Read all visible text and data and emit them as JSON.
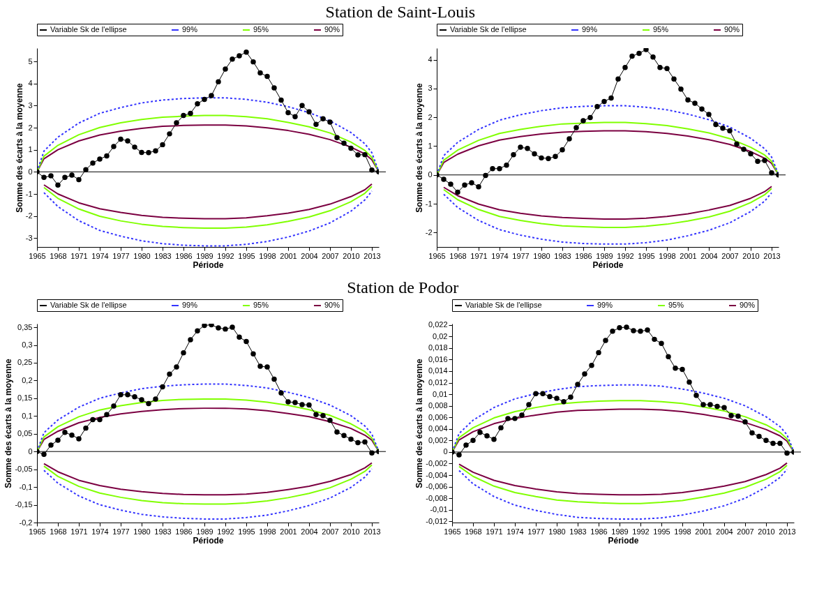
{
  "chart_data": [
    {
      "type": "line",
      "title": "Station de Saint-Louis",
      "xlabel": "Période",
      "ylabel": "Somme des écarts à la moyenne",
      "legend": "top",
      "x": [
        1965,
        1966,
        1967,
        1968,
        1969,
        1970,
        1971,
        1972,
        1973,
        1974,
        1975,
        1976,
        1977,
        1978,
        1979,
        1980,
        1981,
        1982,
        1983,
        1984,
        1985,
        1986,
        1987,
        1988,
        1989,
        1990,
        1991,
        1992,
        1993,
        1994,
        1995,
        1996,
        1997,
        1998,
        1999,
        2000,
        2001,
        2002,
        2003,
        2004,
        2005,
        2006,
        2007,
        2008,
        2009,
        2010,
        2011,
        2012,
        2013,
        2014
      ],
      "xlim": [
        1965,
        2014
      ],
      "xticks": [
        1965,
        1968,
        1971,
        1974,
        1977,
        1980,
        1983,
        1986,
        1989,
        1992,
        1995,
        1998,
        2001,
        2004,
        2007,
        2010,
        2013
      ],
      "ylim": [
        -3.4,
        5.6
      ],
      "yticks": [
        -3,
        -2,
        -1,
        0,
        1,
        2,
        3,
        4,
        5
      ],
      "ref_lines": [
        {
          "axis": "y",
          "value": 0,
          "color": "#000000"
        }
      ],
      "series": [
        {
          "name": "Variable Sk de l'ellipse",
          "color": "#000000",
          "marker": "circle",
          "values": [
            0,
            -0.25,
            -0.18,
            -0.6,
            -0.25,
            -0.15,
            -0.35,
            0.1,
            0.4,
            0.58,
            0.72,
            1.15,
            1.48,
            1.4,
            1.12,
            0.88,
            0.87,
            0.95,
            1.23,
            1.72,
            2.22,
            2.55,
            2.65,
            3.08,
            3.28,
            3.45,
            4.08,
            4.65,
            5.1,
            5.25,
            5.42,
            4.98,
            4.48,
            4.32,
            3.8,
            3.25,
            2.68,
            2.5,
            3.0,
            2.72,
            2.15,
            2.4,
            2.25,
            1.55,
            1.3,
            1.07,
            0.77,
            0.78,
            0.08,
            0
          ]
        },
        {
          "name": "99%",
          "color": "#3333ff",
          "line_style": "dashed",
          "x": [
            1965,
            1966,
            1968,
            1971,
            1974,
            1977,
            1980,
            1983,
            1986,
            1989,
            1992,
            1995,
            1998,
            2001,
            2004,
            2007,
            2010,
            2012,
            2013,
            2014
          ],
          "values": [
            0,
            0.94,
            1.57,
            2.21,
            2.65,
            2.91,
            3.12,
            3.25,
            3.32,
            3.35,
            3.35,
            3.28,
            3.15,
            2.95,
            2.68,
            2.31,
            1.78,
            1.27,
            0.87,
            0
          ]
        },
        {
          "name": "95%",
          "color": "#80ff00",
          "x": [
            1965,
            1966,
            1968,
            1971,
            1974,
            1977,
            1980,
            1983,
            1986,
            1989,
            1992,
            1995,
            1998,
            2001,
            2004,
            2007,
            2010,
            2012,
            2013,
            2014
          ],
          "values": [
            0,
            0.71,
            1.2,
            1.68,
            2.01,
            2.22,
            2.37,
            2.47,
            2.52,
            2.55,
            2.55,
            2.5,
            2.4,
            2.24,
            2.04,
            1.76,
            1.35,
            0.97,
            0.66,
            0
          ]
        },
        {
          "name": "90%",
          "color": "#7b0041",
          "x": [
            1965,
            1966,
            1968,
            1971,
            1974,
            1977,
            1980,
            1983,
            1986,
            1989,
            1992,
            1995,
            1998,
            2001,
            2004,
            2007,
            2010,
            2012,
            2013,
            2014
          ],
          "values": [
            0,
            0.59,
            1.0,
            1.4,
            1.67,
            1.84,
            1.97,
            2.06,
            2.1,
            2.12,
            2.12,
            2.08,
            1.99,
            1.87,
            1.7,
            1.46,
            1.12,
            0.81,
            0.55,
            0
          ]
        },
        {
          "color": "#3333ff",
          "line_style": "dashed",
          "x": [
            1966,
            1968,
            1971,
            1974,
            1977,
            1980,
            1983,
            1986,
            1989,
            1992,
            1995,
            1998,
            2001,
            2004,
            2007,
            2010,
            2012,
            2013
          ],
          "values": [
            -0.94,
            -1.57,
            -2.21,
            -2.65,
            -2.91,
            -3.12,
            -3.25,
            -3.32,
            -3.35,
            -3.35,
            -3.28,
            -3.15,
            -2.95,
            -2.68,
            -2.31,
            -1.78,
            -1.27,
            -0.87
          ]
        },
        {
          "color": "#80ff00",
          "x": [
            1966,
            1968,
            1971,
            1974,
            1977,
            1980,
            1983,
            1986,
            1989,
            1992,
            1995,
            1998,
            2001,
            2004,
            2007,
            2010,
            2012,
            2013
          ],
          "values": [
            -0.71,
            -1.2,
            -1.68,
            -2.01,
            -2.22,
            -2.37,
            -2.47,
            -2.52,
            -2.55,
            -2.55,
            -2.5,
            -2.4,
            -2.24,
            -2.04,
            -1.76,
            -1.35,
            -0.97,
            -0.66
          ]
        },
        {
          "color": "#7b0041",
          "x": [
            1966,
            1968,
            1971,
            1974,
            1977,
            1980,
            1983,
            1986,
            1989,
            1992,
            1995,
            1998,
            2001,
            2004,
            2007,
            2010,
            2012,
            2013
          ],
          "values": [
            -0.59,
            -1.0,
            -1.4,
            -1.67,
            -1.84,
            -1.97,
            -2.06,
            -2.1,
            -2.12,
            -2.12,
            -2.08,
            -1.99,
            -1.87,
            -1.7,
            -1.46,
            -1.12,
            -0.81,
            -0.55
          ]
        }
      ]
    },
    {
      "type": "line",
      "xlabel": "Période",
      "ylabel": "Somme des écarts à la moyenne",
      "legend": "top",
      "x": [
        1965,
        1966,
        1967,
        1968,
        1969,
        1970,
        1971,
        1972,
        1973,
        1974,
        1975,
        1976,
        1977,
        1978,
        1979,
        1980,
        1981,
        1982,
        1983,
        1984,
        1985,
        1986,
        1987,
        1988,
        1989,
        1990,
        1991,
        1992,
        1993,
        1994,
        1995,
        1996,
        1997,
        1998,
        1999,
        2000,
        2001,
        2002,
        2003,
        2004,
        2005,
        2006,
        2007,
        2008,
        2009,
        2010,
        2011,
        2012,
        2013,
        2014
      ],
      "xlim": [
        1965,
        2014
      ],
      "xticks": [
        1965,
        1968,
        1971,
        1974,
        1977,
        1980,
        1983,
        1986,
        1989,
        1992,
        1995,
        1998,
        2001,
        2004,
        2007,
        2010,
        2013
      ],
      "ylim": [
        -2.5,
        4.4
      ],
      "yticks": [
        -2,
        -1,
        0,
        1,
        2,
        3,
        4
      ],
      "ref_lines": [
        {
          "axis": "y",
          "value": 0,
          "color": "#000000"
        }
      ],
      "series": [
        {
          "name": "Variable Sk de l'ellipse",
          "color": "#000000",
          "marker": "circle",
          "values": [
            0,
            -0.15,
            -0.32,
            -0.6,
            -0.35,
            -0.27,
            -0.41,
            -0.02,
            0.22,
            0.22,
            0.34,
            0.7,
            0.96,
            0.92,
            0.73,
            0.59,
            0.57,
            0.64,
            0.87,
            1.25,
            1.64,
            1.88,
            1.99,
            2.37,
            2.55,
            2.67,
            3.33,
            3.73,
            4.12,
            4.22,
            4.35,
            4.09,
            3.73,
            3.69,
            3.33,
            2.98,
            2.6,
            2.49,
            2.29,
            2.1,
            1.75,
            1.62,
            1.53,
            1.07,
            0.89,
            0.73,
            0.47,
            0.5,
            0.07,
            0
          ]
        },
        {
          "name": "99%",
          "color": "#3333ff",
          "line_style": "dashed",
          "x": [
            1965,
            1966,
            1968,
            1971,
            1974,
            1977,
            1980,
            1983,
            1986,
            1989,
            1992,
            1995,
            1998,
            2001,
            2004,
            2007,
            2010,
            2012,
            2013,
            2014
          ],
          "values": [
            0,
            0.67,
            1.13,
            1.58,
            1.9,
            2.09,
            2.23,
            2.33,
            2.38,
            2.4,
            2.4,
            2.35,
            2.26,
            2.11,
            1.92,
            1.66,
            1.27,
            0.91,
            0.62,
            0
          ]
        },
        {
          "name": "95%",
          "color": "#80ff00",
          "x": [
            1965,
            1966,
            1968,
            1971,
            1974,
            1977,
            1980,
            1983,
            1986,
            1989,
            1992,
            1995,
            1998,
            2001,
            2004,
            2007,
            2010,
            2012,
            2013,
            2014
          ],
          "values": [
            0,
            0.51,
            0.86,
            1.2,
            1.44,
            1.58,
            1.69,
            1.77,
            1.8,
            1.82,
            1.82,
            1.78,
            1.71,
            1.6,
            1.46,
            1.26,
            0.96,
            0.69,
            0.47,
            0
          ]
        },
        {
          "name": "90%",
          "color": "#7b0041",
          "x": [
            1965,
            1966,
            1968,
            1971,
            1974,
            1977,
            1980,
            1983,
            1986,
            1989,
            1992,
            1995,
            1998,
            2001,
            2004,
            2007,
            2010,
            2012,
            2013,
            2014
          ],
          "values": [
            0,
            0.43,
            0.72,
            1.01,
            1.21,
            1.33,
            1.42,
            1.48,
            1.51,
            1.53,
            1.53,
            1.5,
            1.44,
            1.35,
            1.22,
            1.06,
            0.81,
            0.58,
            0.4,
            0
          ]
        },
        {
          "color": "#3333ff",
          "line_style": "dashed",
          "x": [
            1966,
            1968,
            1971,
            1974,
            1977,
            1980,
            1983,
            1986,
            1989,
            1992,
            1995,
            1998,
            2001,
            2004,
            2007,
            2010,
            2012,
            2013
          ],
          "values": [
            -0.67,
            -1.13,
            -1.58,
            -1.9,
            -2.09,
            -2.23,
            -2.33,
            -2.38,
            -2.4,
            -2.4,
            -2.35,
            -2.26,
            -2.11,
            -1.92,
            -1.66,
            -1.27,
            -0.91,
            -0.62
          ]
        },
        {
          "color": "#80ff00",
          "x": [
            1966,
            1968,
            1971,
            1974,
            1977,
            1980,
            1983,
            1986,
            1989,
            1992,
            1995,
            1998,
            2001,
            2004,
            2007,
            2010,
            2012,
            2013
          ],
          "values": [
            -0.51,
            -0.86,
            -1.2,
            -1.44,
            -1.58,
            -1.69,
            -1.77,
            -1.8,
            -1.82,
            -1.82,
            -1.78,
            -1.71,
            -1.6,
            -1.46,
            -1.26,
            -0.96,
            -0.69,
            -0.47
          ]
        },
        {
          "color": "#7b0041",
          "x": [
            1966,
            1968,
            1971,
            1974,
            1977,
            1980,
            1983,
            1986,
            1989,
            1992,
            1995,
            1998,
            2001,
            2004,
            2007,
            2010,
            2012,
            2013
          ],
          "values": [
            -0.43,
            -0.72,
            -1.01,
            -1.21,
            -1.33,
            -1.42,
            -1.48,
            -1.51,
            -1.53,
            -1.53,
            -1.5,
            -1.44,
            -1.35,
            -1.22,
            -1.06,
            -0.81,
            -0.58,
            -0.4
          ]
        }
      ]
    },
    {
      "type": "line",
      "title": "Station de Podor",
      "xlabel": "Période",
      "ylabel": "Somme des écarts à la moyenne",
      "legend": "top",
      "x": [
        1965,
        1966,
        1967,
        1968,
        1969,
        1970,
        1971,
        1972,
        1973,
        1974,
        1975,
        1976,
        1977,
        1978,
        1979,
        1980,
        1981,
        1982,
        1983,
        1984,
        1985,
        1986,
        1987,
        1988,
        1989,
        1990,
        1991,
        1992,
        1993,
        1994,
        1995,
        1996,
        1997,
        1998,
        1999,
        2000,
        2001,
        2002,
        2003,
        2004,
        2005,
        2006,
        2007,
        2008,
        2009,
        2010,
        2011,
        2012,
        2013,
        2014
      ],
      "xlim": [
        1965,
        2014
      ],
      "xticks": [
        1965,
        1968,
        1971,
        1974,
        1977,
        1980,
        1983,
        1986,
        1989,
        1992,
        1995,
        1998,
        2001,
        2004,
        2007,
        2010,
        2013
      ],
      "ylim": [
        -0.2,
        0.36
      ],
      "yticks": [
        {
          "value": -0.2,
          "label": "-0,2"
        },
        {
          "value": -0.15,
          "label": "-0,15"
        },
        {
          "value": -0.1,
          "label": "-0,1"
        },
        {
          "value": -0.05,
          "label": "-0,05"
        },
        0,
        {
          "value": 0.05,
          "label": "0,05"
        },
        {
          "value": 0.1,
          "label": "0,1"
        },
        {
          "value": 0.15,
          "label": "0,15"
        },
        {
          "value": 0.2,
          "label": "0,2"
        },
        {
          "value": 0.25,
          "label": "0,25"
        },
        {
          "value": 0.3,
          "label": "0,3"
        },
        {
          "value": 0.35,
          "label": "0,35"
        }
      ],
      "ref_lines": [
        {
          "axis": "y",
          "value": 0,
          "color": "#000000"
        }
      ],
      "series": [
        {
          "name": "Variable Sk de l'ellipse",
          "color": "#000000",
          "marker": "circle",
          "values": [
            0,
            -0.008,
            0.018,
            0.032,
            0.054,
            0.046,
            0.036,
            0.066,
            0.09,
            0.09,
            0.104,
            0.128,
            0.16,
            0.16,
            0.154,
            0.146,
            0.135,
            0.148,
            0.182,
            0.218,
            0.238,
            0.278,
            0.315,
            0.34,
            0.355,
            0.357,
            0.348,
            0.345,
            0.35,
            0.322,
            0.31,
            0.275,
            0.24,
            0.238,
            0.204,
            0.165,
            0.14,
            0.138,
            0.132,
            0.131,
            0.104,
            0.101,
            0.088,
            0.055,
            0.045,
            0.035,
            0.025,
            0.027,
            -0.004,
            0
          ]
        },
        {
          "name": "99%",
          "color": "#3333ff",
          "line_style": "dashed",
          "x": [
            1965,
            1966,
            1968,
            1971,
            1974,
            1977,
            1980,
            1983,
            1986,
            1989,
            1992,
            1995,
            1998,
            2001,
            2004,
            2007,
            2010,
            2012,
            2013,
            2014
          ],
          "values": [
            0,
            0.053,
            0.089,
            0.125,
            0.15,
            0.165,
            0.177,
            0.184,
            0.188,
            0.19,
            0.19,
            0.186,
            0.179,
            0.167,
            0.152,
            0.131,
            0.101,
            0.072,
            0.049,
            0
          ]
        },
        {
          "name": "95%",
          "color": "#80ff00",
          "x": [
            1965,
            1966,
            1968,
            1971,
            1974,
            1977,
            1980,
            1983,
            1986,
            1989,
            1992,
            1995,
            1998,
            2001,
            2004,
            2007,
            2010,
            2012,
            2013,
            2014
          ],
          "values": [
            0,
            0.041,
            0.07,
            0.098,
            0.117,
            0.129,
            0.138,
            0.144,
            0.147,
            0.148,
            0.148,
            0.145,
            0.139,
            0.13,
            0.118,
            0.102,
            0.078,
            0.056,
            0.038,
            0
          ]
        },
        {
          "name": "90%",
          "color": "#7b0041",
          "x": [
            1965,
            1966,
            1968,
            1971,
            1974,
            1977,
            1980,
            1983,
            1986,
            1989,
            1992,
            1995,
            1998,
            2001,
            2004,
            2007,
            2010,
            2012,
            2013,
            2014
          ],
          "values": [
            0,
            0.034,
            0.057,
            0.081,
            0.096,
            0.106,
            0.113,
            0.118,
            0.121,
            0.122,
            0.122,
            0.12,
            0.115,
            0.107,
            0.098,
            0.084,
            0.065,
            0.046,
            0.032,
            0
          ]
        },
        {
          "color": "#3333ff",
          "line_style": "dashed",
          "x": [
            1966,
            1968,
            1971,
            1974,
            1977,
            1980,
            1983,
            1986,
            1989,
            1992,
            1995,
            1998,
            2001,
            2004,
            2007,
            2010,
            2012,
            2013
          ],
          "values": [
            -0.053,
            -0.089,
            -0.125,
            -0.15,
            -0.165,
            -0.177,
            -0.184,
            -0.188,
            -0.19,
            -0.19,
            -0.186,
            -0.179,
            -0.167,
            -0.152,
            -0.131,
            -0.101,
            -0.072,
            -0.049
          ]
        },
        {
          "color": "#80ff00",
          "x": [
            1966,
            1968,
            1971,
            1974,
            1977,
            1980,
            1983,
            1986,
            1989,
            1992,
            1995,
            1998,
            2001,
            2004,
            2007,
            2010,
            2012,
            2013
          ],
          "values": [
            -0.041,
            -0.07,
            -0.098,
            -0.117,
            -0.129,
            -0.138,
            -0.144,
            -0.147,
            -0.148,
            -0.148,
            -0.145,
            -0.139,
            -0.13,
            -0.118,
            -0.102,
            -0.078,
            -0.056,
            -0.038
          ]
        },
        {
          "color": "#7b0041",
          "x": [
            1966,
            1968,
            1971,
            1974,
            1977,
            1980,
            1983,
            1986,
            1989,
            1992,
            1995,
            1998,
            2001,
            2004,
            2007,
            2010,
            2012,
            2013
          ],
          "values": [
            -0.034,
            -0.057,
            -0.081,
            -0.096,
            -0.106,
            -0.113,
            -0.118,
            -0.121,
            -0.122,
            -0.122,
            -0.12,
            -0.115,
            -0.107,
            -0.098,
            -0.084,
            -0.065,
            -0.046,
            -0.032
          ]
        }
      ]
    },
    {
      "type": "line",
      "xlabel": "Période",
      "ylabel": "Somme des écarts à la moyenne",
      "legend": "top",
      "x": [
        1965,
        1966,
        1967,
        1968,
        1969,
        1970,
        1971,
        1972,
        1973,
        1974,
        1975,
        1976,
        1977,
        1978,
        1979,
        1980,
        1981,
        1982,
        1983,
        1984,
        1985,
        1986,
        1987,
        1988,
        1989,
        1990,
        1991,
        1992,
        1993,
        1994,
        1995,
        1996,
        1997,
        1998,
        1999,
        2000,
        2001,
        2002,
        2003,
        2004,
        2005,
        2006,
        2007,
        2008,
        2009,
        2010,
        2011,
        2012,
        2013,
        2014
      ],
      "xlim": [
        1965,
        2014
      ],
      "xticks": [
        1965,
        1968,
        1971,
        1974,
        1977,
        1980,
        1983,
        1986,
        1989,
        1992,
        1995,
        1998,
        2001,
        2004,
        2007,
        2010,
        2013
      ],
      "ylim": [
        -0.0122,
        0.0222
      ],
      "yticks": [
        {
          "value": -0.012,
          "label": "-0,012"
        },
        {
          "value": -0.01,
          "label": "-0,01"
        },
        {
          "value": -0.008,
          "label": "-0,008"
        },
        {
          "value": -0.006,
          "label": "-0,006"
        },
        {
          "value": -0.004,
          "label": "-0,004"
        },
        {
          "value": -0.002,
          "label": "-0,002"
        },
        0,
        {
          "value": 0.002,
          "label": "0,002"
        },
        {
          "value": 0.004,
          "label": "0,004"
        },
        {
          "value": 0.006,
          "label": "0,006"
        },
        {
          "value": 0.008,
          "label": "0,008"
        },
        {
          "value": 0.01,
          "label": "0,01"
        },
        {
          "value": 0.012,
          "label": "0,012"
        },
        {
          "value": 0.014,
          "label": "0,014"
        },
        {
          "value": 0.016,
          "label": "0,016"
        },
        {
          "value": 0.018,
          "label": "0,018"
        },
        {
          "value": 0.02,
          "label": "0,02"
        },
        {
          "value": 0.022,
          "label": "0,022"
        }
      ],
      "ref_lines": [
        {
          "axis": "y",
          "value": 0,
          "color": "#000000"
        }
      ],
      "series": [
        {
          "name": "Variable Sk de l'ellipse",
          "color": "#000000",
          "marker": "circle",
          "values": [
            0,
            -0.0005,
            0.0012,
            0.002,
            0.0034,
            0.0028,
            0.0022,
            0.0042,
            0.0058,
            0.0058,
            0.0064,
            0.0082,
            0.0101,
            0.0101,
            0.0096,
            0.0093,
            0.0087,
            0.0095,
            0.0117,
            0.0135,
            0.015,
            0.0172,
            0.0193,
            0.0209,
            0.0215,
            0.0216,
            0.021,
            0.0209,
            0.0211,
            0.0195,
            0.0188,
            0.0165,
            0.0145,
            0.0143,
            0.0121,
            0.0098,
            0.0082,
            0.0082,
            0.0079,
            0.0077,
            0.0063,
            0.0062,
            0.0052,
            0.0033,
            0.0027,
            0.002,
            0.0015,
            0.0015,
            -0.0002,
            0
          ]
        },
        {
          "name": "99%",
          "color": "#3333ff",
          "line_style": "dashed",
          "x": [
            1965,
            1966,
            1968,
            1971,
            1974,
            1977,
            1980,
            1983,
            1986,
            1989,
            1992,
            1995,
            1998,
            2001,
            2004,
            2007,
            2010,
            2012,
            2013,
            2014
          ],
          "values": [
            0,
            0.0032,
            0.0055,
            0.0077,
            0.0092,
            0.0101,
            0.0108,
            0.0113,
            0.0115,
            0.0116,
            0.0116,
            0.0114,
            0.0109,
            0.0102,
            0.0093,
            0.008,
            0.0061,
            0.0044,
            0.003,
            0
          ]
        },
        {
          "name": "95%",
          "color": "#80ff00",
          "x": [
            1965,
            1966,
            1968,
            1971,
            1974,
            1977,
            1980,
            1983,
            1986,
            1989,
            1992,
            1995,
            1998,
            2001,
            2004,
            2007,
            2010,
            2012,
            2013,
            2014
          ],
          "values": [
            0,
            0.0025,
            0.0042,
            0.0059,
            0.007,
            0.0077,
            0.0083,
            0.0086,
            0.0088,
            0.0089,
            0.0089,
            0.0087,
            0.0084,
            0.0078,
            0.0071,
            0.0061,
            0.0047,
            0.0034,
            0.0023,
            0
          ]
        },
        {
          "name": "90%",
          "color": "#7b0041",
          "x": [
            1965,
            1966,
            1968,
            1971,
            1974,
            1977,
            1980,
            1983,
            1986,
            1989,
            1992,
            1995,
            1998,
            2001,
            2004,
            2007,
            2010,
            2012,
            2013,
            2014
          ],
          "values": [
            0,
            0.0021,
            0.0035,
            0.0049,
            0.0058,
            0.0064,
            0.0069,
            0.0072,
            0.0073,
            0.0074,
            0.0074,
            0.0073,
            0.007,
            0.0065,
            0.0059,
            0.0051,
            0.0039,
            0.0028,
            0.0019,
            0
          ]
        },
        {
          "color": "#3333ff",
          "line_style": "dashed",
          "x": [
            1966,
            1968,
            1971,
            1974,
            1977,
            1980,
            1983,
            1986,
            1989,
            1992,
            1995,
            1998,
            2001,
            2004,
            2007,
            2010,
            2012,
            2013
          ],
          "values": [
            -0.0032,
            -0.0055,
            -0.0077,
            -0.0092,
            -0.0101,
            -0.0108,
            -0.0113,
            -0.0115,
            -0.0116,
            -0.0116,
            -0.0114,
            -0.0109,
            -0.0102,
            -0.0093,
            -0.008,
            -0.0061,
            -0.0044,
            -0.003
          ]
        },
        {
          "color": "#80ff00",
          "x": [
            1966,
            1968,
            1971,
            1974,
            1977,
            1980,
            1983,
            1986,
            1989,
            1992,
            1995,
            1998,
            2001,
            2004,
            2007,
            2010,
            2012,
            2013
          ],
          "values": [
            -0.0025,
            -0.0042,
            -0.0059,
            -0.007,
            -0.0077,
            -0.0083,
            -0.0086,
            -0.0088,
            -0.0089,
            -0.0089,
            -0.0087,
            -0.0084,
            -0.0078,
            -0.0071,
            -0.0061,
            -0.0047,
            -0.0034,
            -0.0023
          ]
        },
        {
          "color": "#7b0041",
          "x": [
            1966,
            1968,
            1971,
            1974,
            1977,
            1980,
            1983,
            1986,
            1989,
            1992,
            1995,
            1998,
            2001,
            2004,
            2007,
            2010,
            2012,
            2013
          ],
          "values": [
            -0.0021,
            -0.0035,
            -0.0049,
            -0.0058,
            -0.0064,
            -0.0069,
            -0.0072,
            -0.0073,
            -0.0074,
            -0.0074,
            -0.0073,
            -0.007,
            -0.0065,
            -0.0059,
            -0.0051,
            -0.0039,
            -0.0028,
            -0.0019
          ]
        }
      ]
    }
  ]
}
